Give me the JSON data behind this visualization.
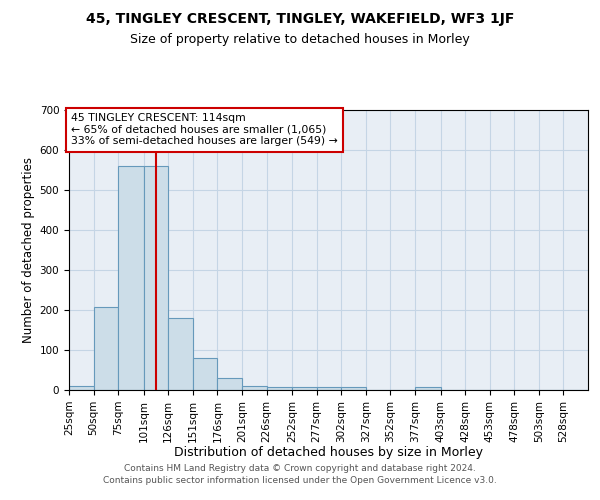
{
  "title1": "45, TINGLEY CRESCENT, TINGLEY, WAKEFIELD, WF3 1JF",
  "title2": "Size of property relative to detached houses in Morley",
  "xlabel": "Distribution of detached houses by size in Morley",
  "ylabel": "Number of detached properties",
  "bar_edges": [
    25,
    50,
    75,
    101,
    126,
    151,
    176,
    201,
    226,
    252,
    277,
    302,
    327,
    352,
    377,
    403,
    428,
    453,
    478,
    503,
    528,
    553
  ],
  "bar_heights": [
    10,
    207,
    560,
    560,
    180,
    80,
    30,
    10,
    7,
    7,
    7,
    7,
    0,
    0,
    7,
    0,
    0,
    0,
    0,
    0,
    0
  ],
  "bar_color": "#ccdde8",
  "bar_edge_color": "#6699bb",
  "bar_linewidth": 0.8,
  "red_line_x": 114,
  "red_line_color": "#cc0000",
  "annotation_line1": "45 TINGLEY CRESCENT: 114sqm",
  "annotation_line2": "← 65% of detached houses are smaller (1,065)",
  "annotation_line3": "33% of semi-detached houses are larger (549) →",
  "annotation_box_color": "#cc0000",
  "ylim": [
    0,
    700
  ],
  "yticks": [
    0,
    100,
    200,
    300,
    400,
    500,
    600,
    700
  ],
  "grid_color": "#c5d5e5",
  "bg_color": "#e8eef5",
  "footer1": "Contains HM Land Registry data © Crown copyright and database right 2024.",
  "footer2": "Contains public sector information licensed under the Open Government Licence v3.0.",
  "title1_fontsize": 10,
  "title2_fontsize": 9,
  "xlabel_fontsize": 9,
  "ylabel_fontsize": 8.5,
  "tick_fontsize": 7.5,
  "footer_fontsize": 6.5
}
